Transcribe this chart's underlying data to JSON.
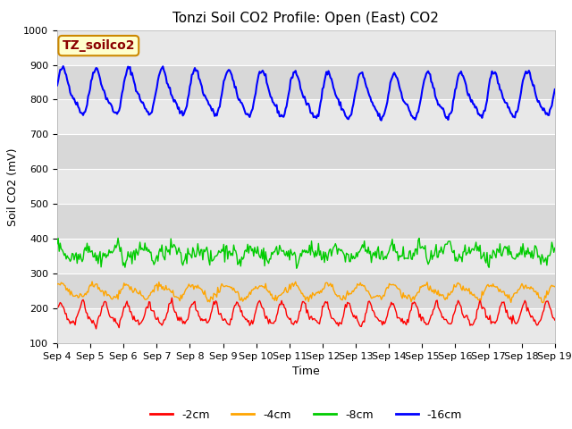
{
  "title": "Tonzi Soil CO2 Profile: Open (East) CO2",
  "ylabel": "Soil CO2 (mV)",
  "xlabel": "Time",
  "legend_label": "TZ_soilco2",
  "ylim": [
    100,
    1000
  ],
  "yticks": [
    100,
    200,
    300,
    400,
    500,
    600,
    700,
    800,
    900,
    1000
  ],
  "num_points": 500,
  "line_colors": {
    "-2cm": "#ff0000",
    "-4cm": "#ffa500",
    "-8cm": "#00cc00",
    "-16cm": "#0000ff"
  },
  "line_widths": {
    "-2cm": 1.0,
    "-4cm": 1.0,
    "-8cm": 1.0,
    "-16cm": 1.5
  },
  "fig_bg_color": "#ffffff",
  "band_colors": [
    "#e8e8e8",
    "#d8d8d8"
  ],
  "legend_box_bg": "#ffffcc",
  "legend_box_edge": "#cc8800",
  "title_fontsize": 11,
  "axis_fontsize": 9,
  "tick_fontsize": 8,
  "legend_fontsize": 9
}
